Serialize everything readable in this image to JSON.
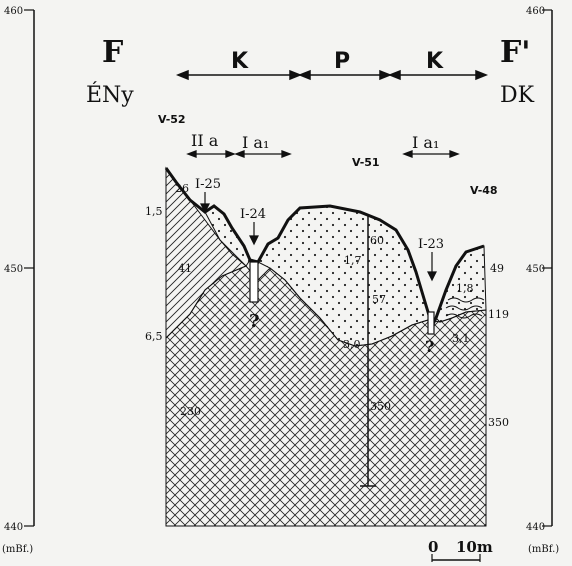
{
  "section": {
    "start_letter": "F",
    "end_letter": "F'",
    "start_direction": "ÉNy",
    "end_direction": "DK"
  },
  "zones": [
    {
      "label": "K"
    },
    {
      "label": "P"
    },
    {
      "label": "K"
    }
  ],
  "subzones": [
    {
      "label": "II a"
    },
    {
      "label": "I a₁"
    },
    {
      "label": "I a₁"
    }
  ],
  "elevation_axis": {
    "unit": "(mBf.)",
    "ticks": [
      "460",
      "450",
      "440"
    ]
  },
  "wells": [
    {
      "name": "V-52"
    },
    {
      "name": "V-51"
    },
    {
      "name": "V-48"
    }
  ],
  "boreholes": [
    {
      "name": "I-25"
    },
    {
      "name": "I-24"
    },
    {
      "name": "I-23"
    }
  ],
  "annotations": {
    "left": [
      "26",
      "1,5",
      "41",
      "6,5",
      "230"
    ],
    "middle": [
      "60",
      "1,7",
      "57",
      "3,0",
      "350"
    ],
    "right": [
      "49",
      "1,8",
      "119",
      "3,1",
      "350"
    ],
    "unknown_marks": [
      "?",
      "?"
    ]
  },
  "scale_bar": {
    "start": "0",
    "end": "10m"
  },
  "colors": {
    "ink": "#111111",
    "paper": "#f4f4f2"
  }
}
